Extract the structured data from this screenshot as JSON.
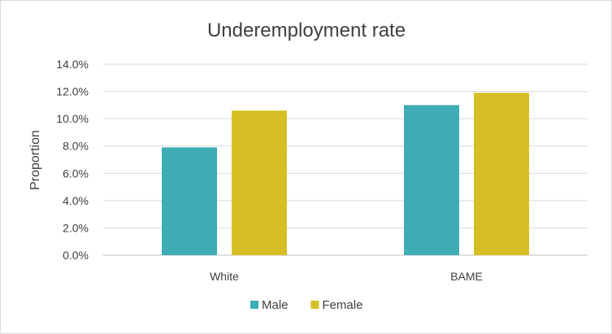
{
  "chart_data": {
    "type": "bar",
    "title": "Underemployment rate",
    "xlabel": "",
    "ylabel": "Proportion",
    "categories": [
      "White",
      "BAME"
    ],
    "series": [
      {
        "name": "Male",
        "values": [
          7.9,
          11.0
        ],
        "color": "#3eadb6"
      },
      {
        "name": "Female",
        "values": [
          10.6,
          11.9
        ],
        "color": "#d6bf24"
      }
    ],
    "ylim": [
      0,
      14
    ],
    "yticks": [
      "0.0%",
      "2.0%",
      "4.0%",
      "6.0%",
      "8.0%",
      "10.0%",
      "12.0%",
      "14.0%"
    ],
    "y_unit": "%",
    "grid": true,
    "legend_position": "bottom"
  }
}
